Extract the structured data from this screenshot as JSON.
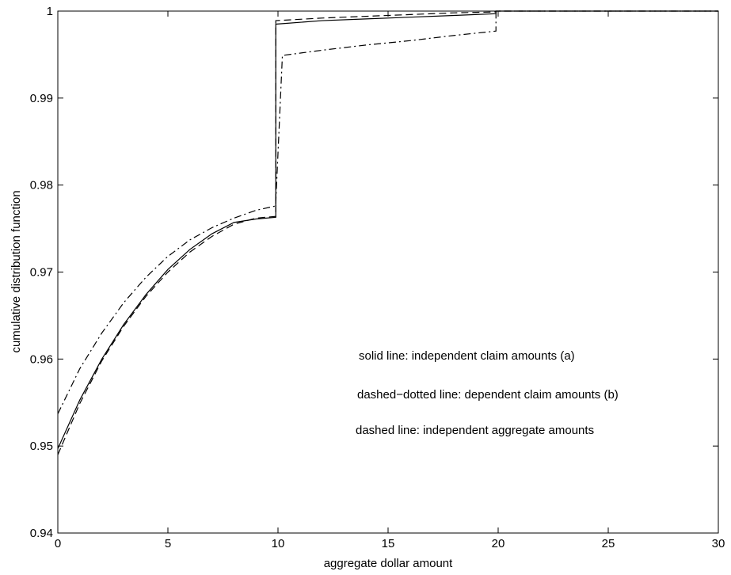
{
  "chart_data": {
    "type": "line",
    "xlabel": "aggregate dollar amount",
    "ylabel": "cumulative distribution function",
    "xlim": [
      0,
      30
    ],
    "ylim": [
      0.94,
      1.0
    ],
    "xticks": [
      0,
      5,
      10,
      15,
      20,
      25,
      30
    ],
    "xtick_labels": [
      "0",
      "5",
      "10",
      "15",
      "20",
      "25",
      "30"
    ],
    "yticks": [
      0.94,
      0.95,
      0.96,
      0.97,
      0.98,
      0.99,
      1.0
    ],
    "ytick_labels": [
      "0.94",
      "0.95",
      "0.96",
      "0.97",
      "0.98",
      "0.99",
      "1"
    ],
    "grid": false,
    "annotations": [
      "solid line: independent claim amounts (a)",
      "dashed−dotted line: dependent claim amounts (b)",
      "dashed line: independent aggregate amounts"
    ],
    "series": [
      {
        "style": "solid",
        "x": [
          0,
          1,
          2,
          3,
          4,
          5,
          6,
          7,
          8,
          9,
          9.9,
          9.9,
          12,
          14,
          16,
          18,
          19.9,
          19.9,
          25,
          30
        ],
        "y": [
          0.9497,
          0.9553,
          0.96,
          0.964,
          0.9674,
          0.9703,
          0.9726,
          0.9744,
          0.9757,
          0.9761,
          0.9763,
          0.9985,
          0.9989,
          0.9991,
          0.9993,
          0.9995,
          0.9997,
          1.0,
          1.0,
          1.0
        ]
      },
      {
        "style": "dashdot",
        "x": [
          0,
          1,
          2,
          3,
          4,
          5,
          6,
          7,
          8,
          9,
          9.9,
          9.9,
          10.2,
          12,
          14,
          16,
          18,
          19.9,
          19.9,
          25,
          30
        ],
        "y": [
          0.9537,
          0.9589,
          0.963,
          0.9665,
          0.9694,
          0.9718,
          0.9737,
          0.9751,
          0.9762,
          0.9771,
          0.9776,
          0.978,
          0.9949,
          0.9955,
          0.9961,
          0.9966,
          0.9972,
          0.9977,
          1.0,
          1.0,
          1.0
        ]
      },
      {
        "style": "dashed",
        "x": [
          0,
          1,
          2,
          3,
          4,
          5,
          6,
          7,
          8,
          9,
          9.9,
          9.9,
          12,
          14,
          16,
          18,
          19.9,
          19.9,
          25,
          30
        ],
        "y": [
          0.949,
          0.9549,
          0.9598,
          0.9638,
          0.9672,
          0.97,
          0.9723,
          0.9741,
          0.9755,
          0.9762,
          0.9764,
          0.9989,
          0.9992,
          0.9994,
          0.9996,
          0.9998,
          0.9999,
          1.0,
          1.0,
          1.0
        ]
      }
    ]
  }
}
